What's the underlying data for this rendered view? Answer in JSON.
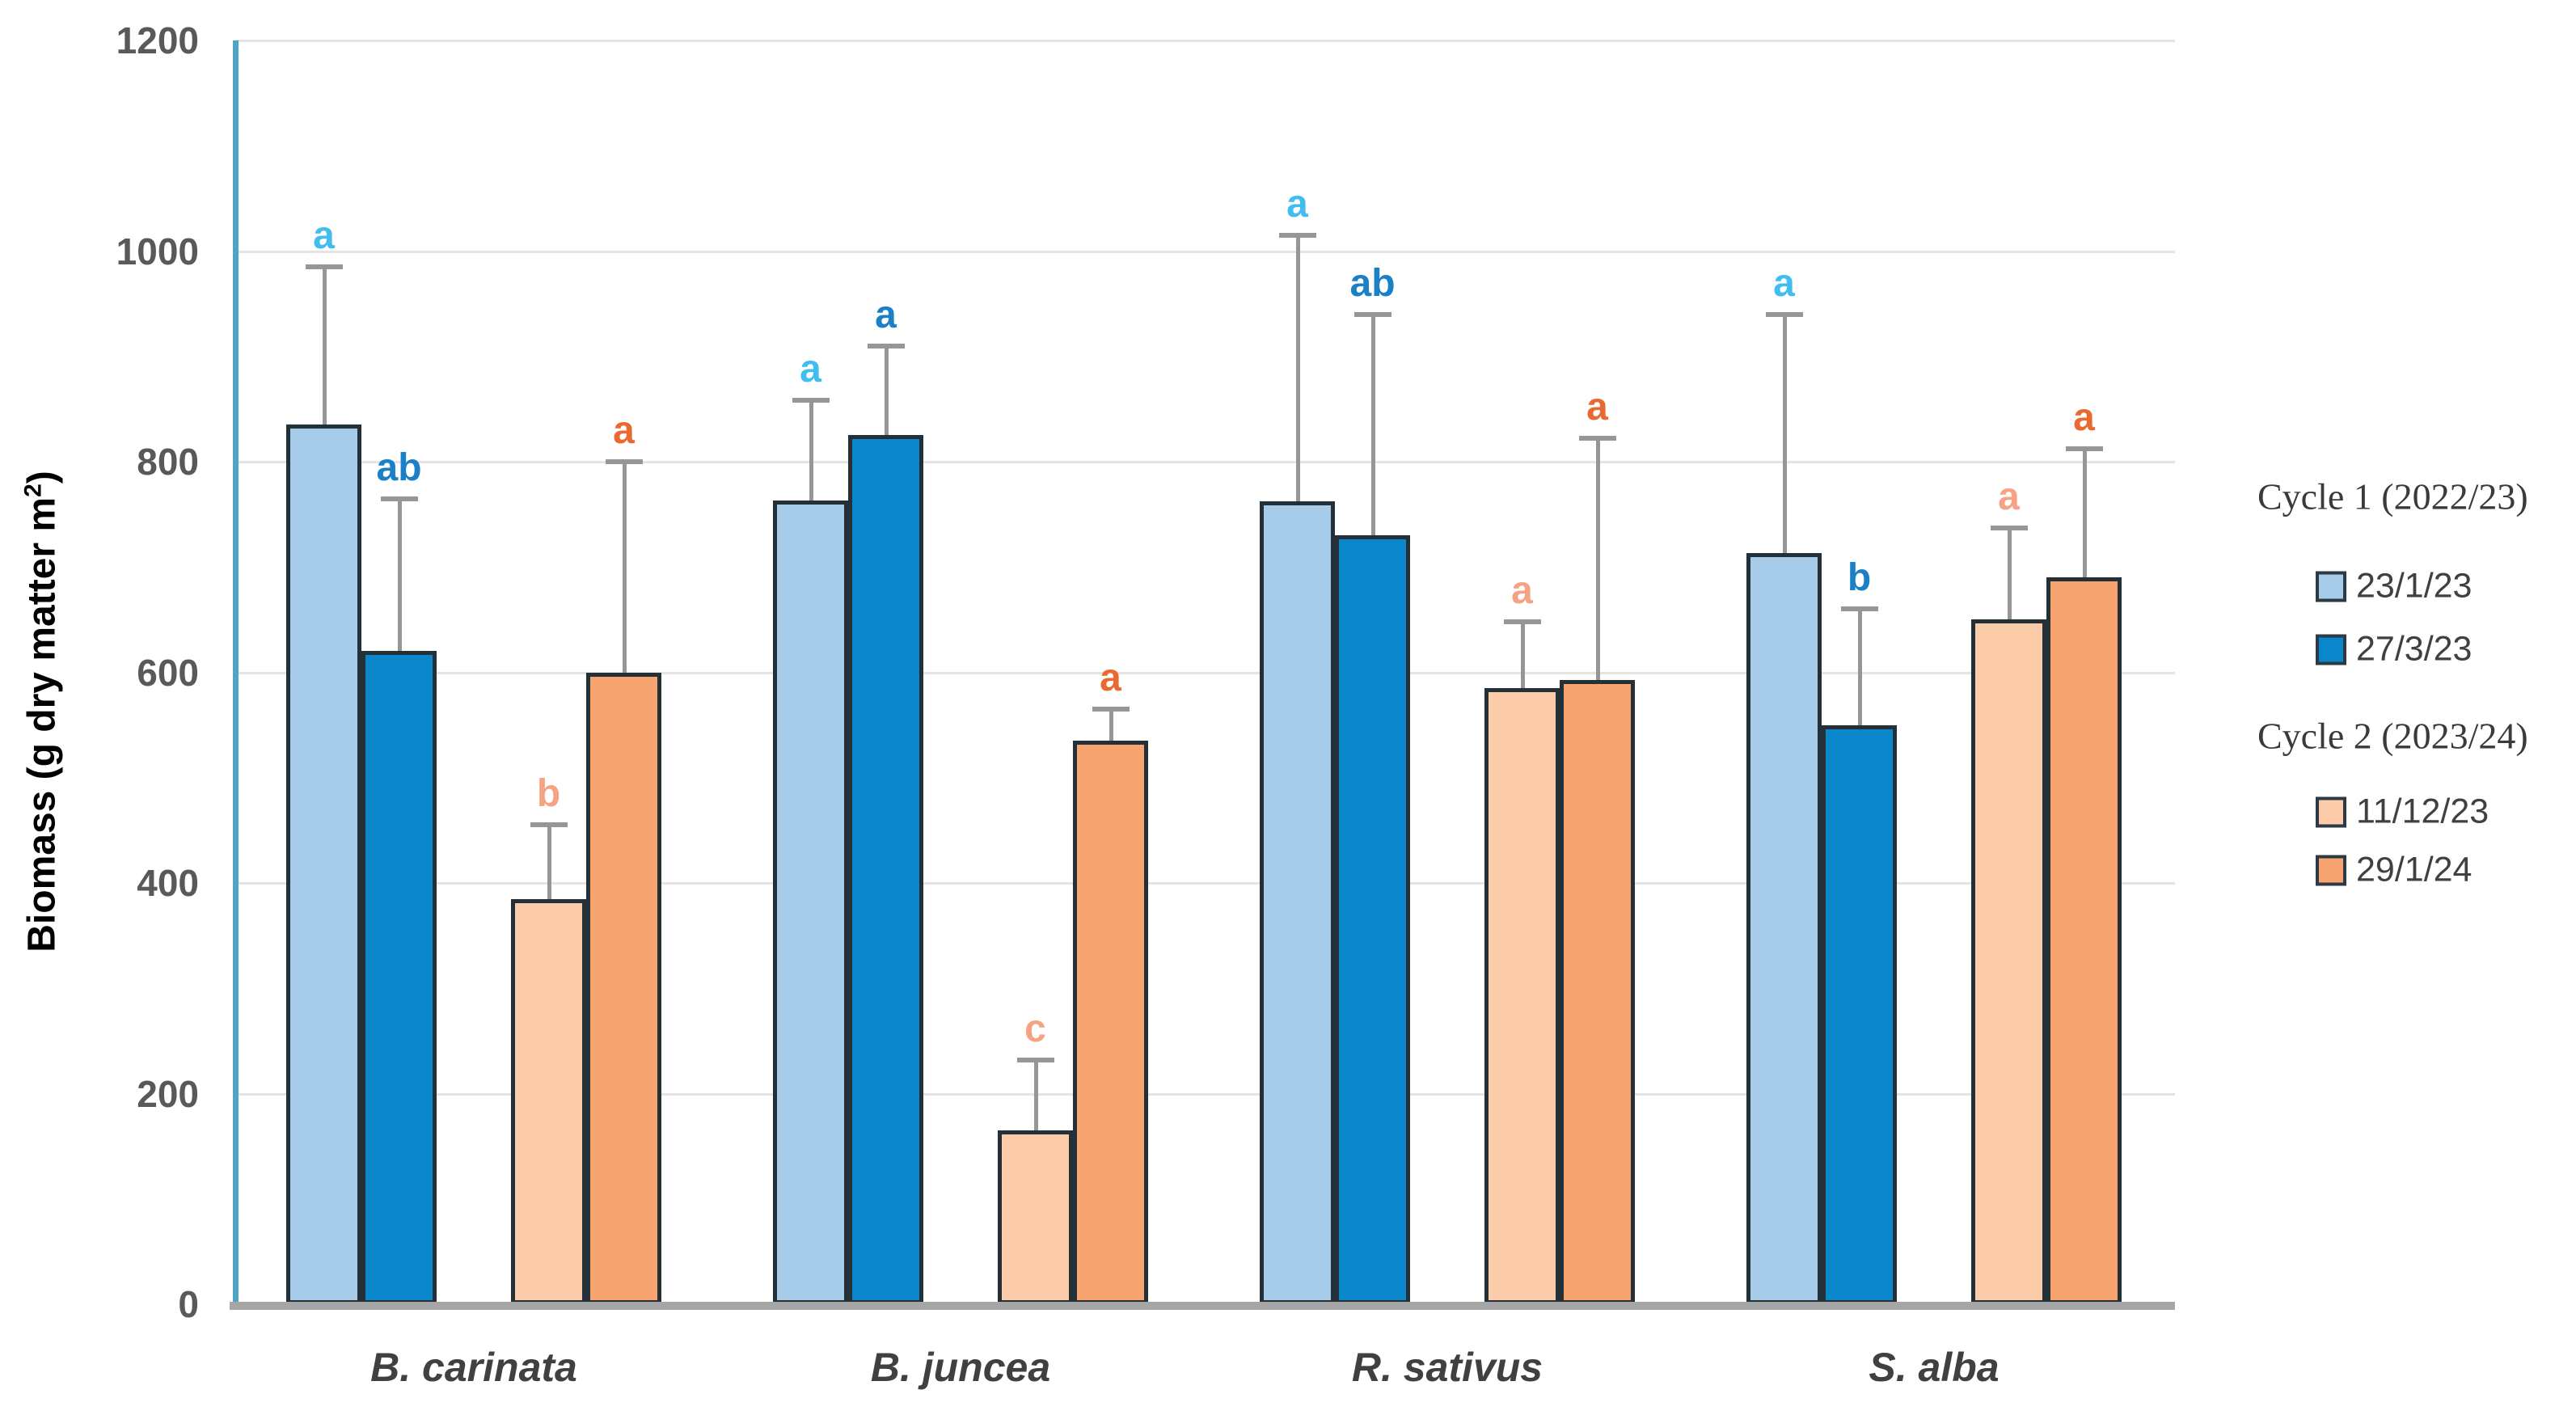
{
  "chart_data": {
    "type": "bar",
    "title": "",
    "ylabel": {
      "prefix": "Biomass (g dry matter m",
      "superscript": "2",
      "suffix": ")"
    },
    "xlabel": "",
    "ylim": [
      0,
      1200
    ],
    "yticks": [
      0,
      200,
      400,
      600,
      800,
      1000,
      1200
    ],
    "grid": true,
    "legend_position": "right",
    "categories": [
      "B. carinata",
      "B. juncea",
      "R. sativus",
      "S. alba"
    ],
    "series": [
      {
        "name": "23/1/23",
        "cycle": "Cycle 1 (2022/23)",
        "color": "#A7CCE9",
        "letter_color": "#41BEEF",
        "values": [
          835,
          763,
          762,
          713
        ],
        "error_top": [
          985,
          858,
          1015,
          940
        ],
        "letters": [
          "a",
          "a",
          "a",
          "a"
        ]
      },
      {
        "name": "27/3/23",
        "cycle": "Cycle 1 (2022/23)",
        "color": "#0A86CA",
        "letter_color": "#1C80C6",
        "values": [
          620,
          825,
          730,
          550
        ],
        "error_top": [
          765,
          910,
          940,
          660
        ],
        "letters": [
          "ab",
          "a",
          "ab",
          "b"
        ]
      },
      {
        "name": "11/12/23",
        "cycle": "Cycle 2 (2023/24)",
        "color": "#FBCBAA",
        "letter_color": "#F6A384",
        "values": [
          385,
          165,
          585,
          650
        ],
        "error_top": [
          455,
          232,
          648,
          737
        ],
        "letters": [
          "b",
          "c",
          "a",
          "a"
        ]
      },
      {
        "name": "29/1/24",
        "cycle": "Cycle 2 (2023/24)",
        "color": "#F8A471",
        "letter_color": "#E96A30",
        "values": [
          600,
          535,
          593,
          690
        ],
        "error_top": [
          800,
          565,
          822,
          812
        ],
        "letters": [
          "a",
          "a",
          "a",
          "a"
        ]
      }
    ],
    "legend": {
      "groups": [
        {
          "header": "Cycle 1 (2022/23)",
          "items": [
            "23/1/23",
            "27/3/23"
          ]
        },
        {
          "header": "Cycle 2 (2023/24)",
          "items": [
            "11/12/23",
            "29/1/24"
          ]
        }
      ]
    }
  },
  "colors": {
    "axis_line": "#4EA6C4",
    "baseline": "#A6A6A6",
    "gridline": "#E4E4E4",
    "error_bar": "#969696",
    "tick_label": "#595959",
    "axis_title": "#404040",
    "category_label": "#404040",
    "legend_header": "#3A3A3A",
    "legend_item": "#404040",
    "bar_border": "#243038"
  }
}
